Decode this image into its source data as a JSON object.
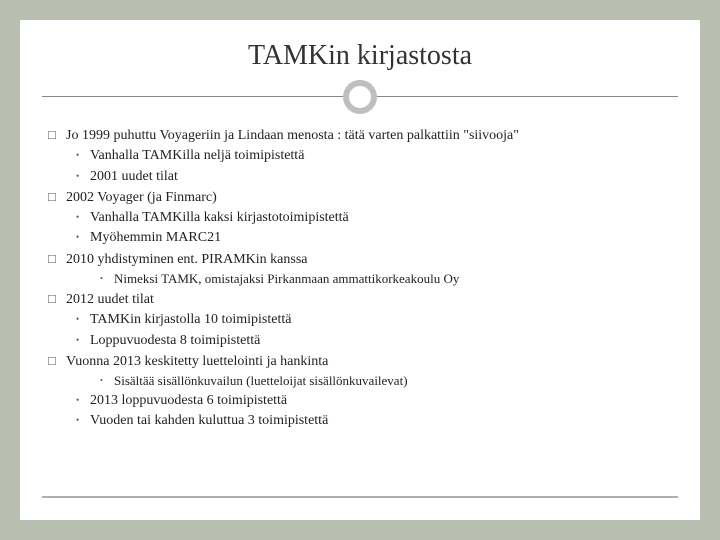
{
  "title": "TAMKin kirjastosta",
  "colors": {
    "page_bg": "#b8beb0",
    "slide_bg": "#ffffff",
    "text": "#222222",
    "ornament": "#bfbfbf",
    "line": "#888888"
  },
  "fonts": {
    "title_size": 28,
    "body_size": 14,
    "sub_size": 13,
    "family": "Georgia"
  },
  "items": [
    {
      "level": 1,
      "text": "Jo 1999 puhuttu Voyageriin ja Lindaan menosta : tätä varten palkattiin \"siivooja\""
    },
    {
      "level": 2,
      "text": "Vanhalla TAMKilla neljä toimipistettä"
    },
    {
      "level": 2,
      "text": "2001 uudet tilat"
    },
    {
      "level": 1,
      "text": "2002 Voyager (ja Finmarc)"
    },
    {
      "level": 2,
      "text": "Vanhalla TAMKilla kaksi kirjastotoimipistettä"
    },
    {
      "level": 2,
      "text": "Myöhemmin MARC21"
    },
    {
      "level": 1,
      "text": "2010 yhdistyminen ent. PIRAMKin kanssa"
    },
    {
      "level": 3,
      "text": "Nimeksi TAMK, omistajaksi Pirkanmaan ammattikorkeakoulu Oy"
    },
    {
      "level": 1,
      "text": "2012 uudet tilat"
    },
    {
      "level": 2,
      "text": "TAMKin kirjastolla 10 toimipistettä"
    },
    {
      "level": 2,
      "text": "Loppuvuodesta 8 toimipistettä"
    },
    {
      "level": 1,
      "text": "Vuonna 2013 keskitetty luettelointi ja hankinta"
    },
    {
      "level": 3,
      "text": "Sisältää sisällönkuvailun (luetteloijat sisällönkuvailevat)"
    },
    {
      "level": 2,
      "text": "2013 loppuvuodesta 6 toimipistettä"
    },
    {
      "level": 2,
      "text": "Vuoden tai kahden kuluttua 3 toimipistettä"
    }
  ]
}
